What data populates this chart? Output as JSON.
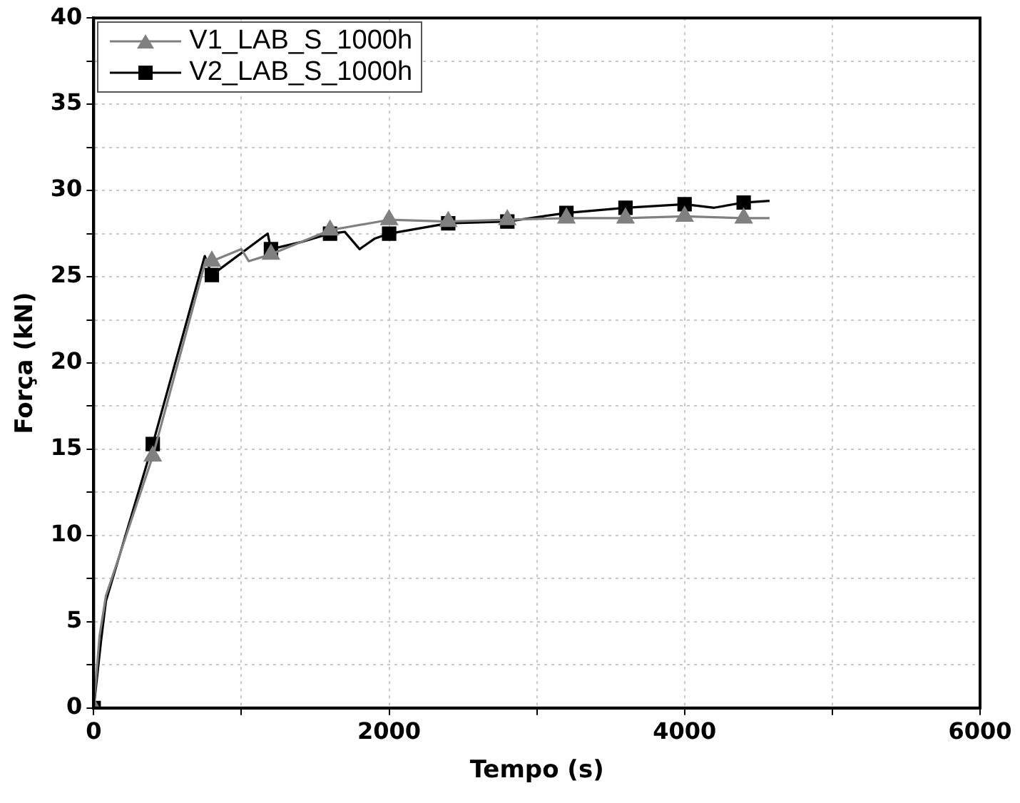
{
  "chart_data": {
    "type": "line",
    "xlabel": "Tempo (s)",
    "ylabel": "Força (kN)",
    "xlim": [
      0,
      6000
    ],
    "ylim": [
      0,
      40
    ],
    "xticks": [
      0,
      {
        "value": 1000,
        "label": null
      },
      2000,
      {
        "value": 3000,
        "label": null
      },
      4000,
      {
        "value": 5000,
        "label": null
      },
      6000
    ],
    "yticks": [
      0,
      {
        "value": 2.5,
        "label": null
      },
      5,
      {
        "value": 7.5,
        "label": null
      },
      10,
      {
        "value": 12.5,
        "label": null
      },
      15,
      {
        "value": 17.5,
        "label": null
      },
      20,
      {
        "value": 22.5,
        "label": null
      },
      25,
      {
        "value": 27.5,
        "label": null
      },
      30,
      {
        "value": 32.5,
        "label": null
      },
      35,
      {
        "value": 37.5,
        "label": null
      },
      40
    ],
    "grid": true,
    "legend": "top left",
    "line_style": "solid",
    "series": [
      {
        "name": "V1_LAB_S_1000h",
        "color": "#808080",
        "marker": "triangle",
        "x": [
          0,
          40,
          83,
          400,
          760,
          800,
          1000,
          1050,
          1200,
          1600,
          2000,
          2400,
          2800,
          3200,
          3600,
          4000,
          4400,
          4575
        ],
        "values": [
          0,
          4.2,
          6.5,
          14.6,
          26.0,
          25.9,
          26.6,
          25.9,
          26.3,
          27.7,
          28.3,
          28.2,
          28.3,
          28.4,
          28.4,
          28.5,
          28.4,
          28.4
        ]
      },
      {
        "name": "V2_LAB_S_1000h",
        "color": "#000000",
        "marker": "square",
        "x": [
          0,
          50,
          83,
          400,
          752,
          800,
          1178,
          1200,
          1400,
          1600,
          1700,
          1800,
          1900,
          2000,
          2400,
          2800,
          3200,
          3600,
          4000,
          4200,
          4400,
          4575
        ],
        "values": [
          0,
          3.9,
          6.2,
          15.3,
          26.2,
          25.1,
          27.5,
          26.6,
          27.0,
          27.5,
          27.6,
          26.6,
          27.2,
          27.5,
          28.1,
          28.2,
          28.7,
          29.0,
          29.2,
          29.0,
          29.3,
          29.4
        ]
      }
    ]
  }
}
